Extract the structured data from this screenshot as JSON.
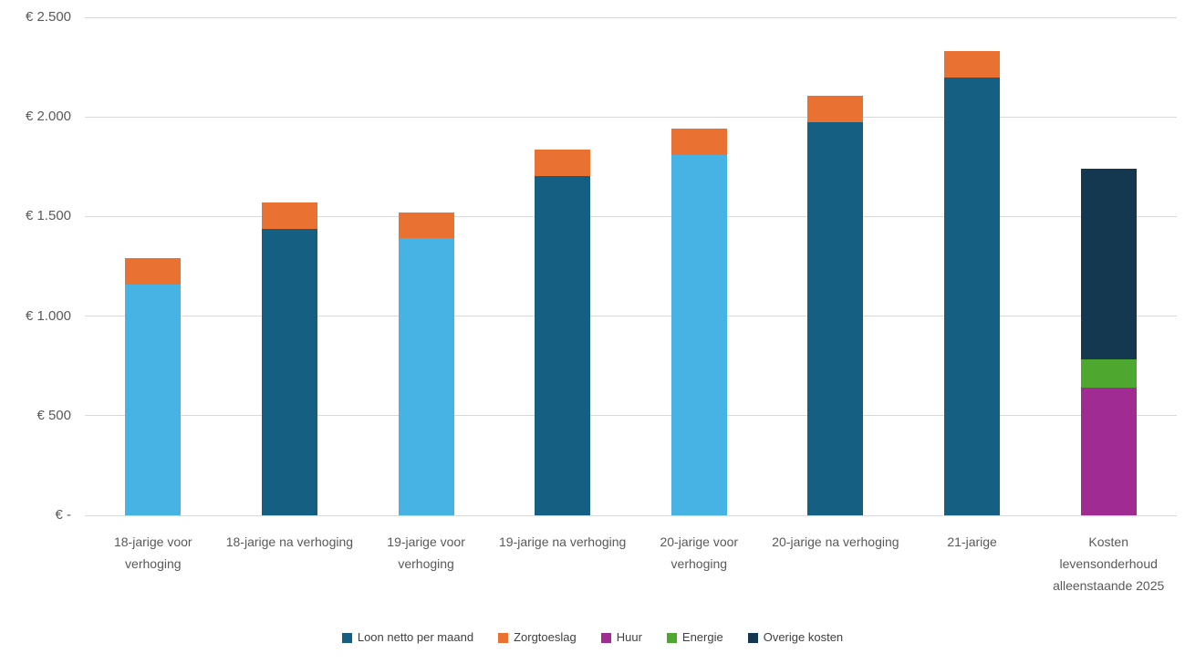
{
  "chart_data": {
    "type": "bar",
    "stacked": true,
    "title": "",
    "xlabel": "",
    "ylabel": "",
    "ylim": [
      0,
      2500
    ],
    "ytick_interval": 500,
    "yticks": [
      {
        "value": 0,
        "label": "€ -"
      },
      {
        "value": 500,
        "label": "€ 500"
      },
      {
        "value": 1000,
        "label": "€ 1.000"
      },
      {
        "value": 1500,
        "label": "€ 1.500"
      },
      {
        "value": 2000,
        "label": "€ 2.000"
      },
      {
        "value": 2500,
        "label": "€ 2.500"
      }
    ],
    "grid": true,
    "legend_position": "bottom",
    "categories": [
      "18-jarige voor verhoging",
      "18-jarige na verhoging",
      "19-jarige voor verhoging",
      "19-jarige na verhoging",
      "20-jarige voor verhoging",
      "20-jarige na verhoging",
      "21-jarige",
      "Kosten levensonderhoud alleenstaande 2025"
    ],
    "bars": [
      {
        "category": "18-jarige voor verhoging",
        "segments": [
          {
            "label": "Loon netto per maand",
            "value": 1160,
            "color": "#47B2E4"
          },
          {
            "label": "Zorgtoeslag",
            "value": 131,
            "color": "#E97132"
          }
        ]
      },
      {
        "category": "18-jarige na verhoging",
        "segments": [
          {
            "label": "Loon netto per maand",
            "value": 1440,
            "color": "#156082"
          },
          {
            "label": "Zorgtoeslag",
            "value": 131,
            "color": "#E97132"
          }
        ]
      },
      {
        "category": "19-jarige voor verhoging",
        "segments": [
          {
            "label": "Loon netto per maand",
            "value": 1390,
            "color": "#47B2E4"
          },
          {
            "label": "Zorgtoeslag",
            "value": 131,
            "color": "#E97132"
          }
        ]
      },
      {
        "category": "19-jarige na verhoging",
        "segments": [
          {
            "label": "Loon netto per maand",
            "value": 1705,
            "color": "#156082"
          },
          {
            "label": "Zorgtoeslag",
            "value": 131,
            "color": "#E97132"
          }
        ]
      },
      {
        "category": "20-jarige voor verhoging",
        "segments": [
          {
            "label": "Loon netto per maand",
            "value": 1810,
            "color": "#47B2E4"
          },
          {
            "label": "Zorgtoeslag",
            "value": 131,
            "color": "#E97132"
          }
        ]
      },
      {
        "category": "20-jarige na verhoging",
        "segments": [
          {
            "label": "Loon netto per maand",
            "value": 1975,
            "color": "#156082"
          },
          {
            "label": "Zorgtoeslag",
            "value": 131,
            "color": "#E97132"
          }
        ]
      },
      {
        "category": "21-jarige",
        "segments": [
          {
            "label": "Loon netto per maand",
            "value": 2200,
            "color": "#156082"
          },
          {
            "label": "Zorgtoeslag",
            "value": 131,
            "color": "#E97132"
          }
        ]
      },
      {
        "category": "Kosten levensonderhoud alleenstaande 2025",
        "segments": [
          {
            "label": "Huur",
            "value": 640,
            "color": "#A02B93"
          },
          {
            "label": "Energie",
            "value": 145,
            "color": "#4EA72E"
          },
          {
            "label": "Overige kosten",
            "value": 955,
            "color": "#13384F"
          }
        ]
      }
    ],
    "legend": [
      {
        "label": "Loon netto per maand",
        "color": "#156082"
      },
      {
        "label": "Zorgtoeslag",
        "color": "#E97132"
      },
      {
        "label": "Huur",
        "color": "#A02B93"
      },
      {
        "label": "Energie",
        "color": "#4EA72E"
      },
      {
        "label": "Overige kosten",
        "color": "#13384F"
      }
    ],
    "colors": {
      "loon_voor_verhoging": "#47B2E4",
      "loon_na_verhoging": "#156082",
      "zorgtoeslag": "#E97132",
      "huur": "#A02B93",
      "energie": "#4EA72E",
      "overige_kosten": "#13384F",
      "gridline": "#D9D9D9",
      "axis_text": "#595959",
      "legend_text": "#404040",
      "background": "#FFFFFF"
    }
  }
}
